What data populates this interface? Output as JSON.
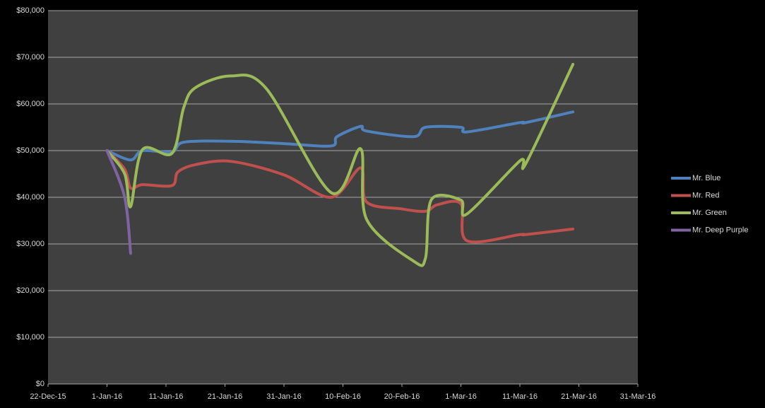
{
  "chart_data": {
    "type": "line",
    "xlim": [
      "2015-12-22",
      "2016-03-31"
    ],
    "xticks": [
      {
        "value": "2015-12-22",
        "label": "22-Dec-15"
      },
      {
        "value": "2016-01-01",
        "label": "1-Jan-16"
      },
      {
        "value": "2016-01-11",
        "label": "11-Jan-16"
      },
      {
        "value": "2016-01-21",
        "label": "21-Jan-16"
      },
      {
        "value": "2016-01-31",
        "label": "31-Jan-16"
      },
      {
        "value": "2016-02-10",
        "label": "10-Feb-16"
      },
      {
        "value": "2016-02-20",
        "label": "20-Feb-16"
      },
      {
        "value": "2016-03-01",
        "label": "1-Mar-16"
      },
      {
        "value": "2016-03-11",
        "label": "11-Mar-16"
      },
      {
        "value": "2016-03-21",
        "label": "21-Mar-16"
      },
      {
        "value": "2016-03-31",
        "label": "31-Mar-16"
      }
    ],
    "ylim": [
      0,
      80000
    ],
    "yticks": [
      {
        "value": 0,
        "label": "$0"
      },
      {
        "value": 10000,
        "label": "$10,000"
      },
      {
        "value": 20000,
        "label": "$20,000"
      },
      {
        "value": 30000,
        "label": "$30,000"
      },
      {
        "value": 40000,
        "label": "$40,000"
      },
      {
        "value": 50000,
        "label": "$50,000"
      },
      {
        "value": 60000,
        "label": "$60,000"
      },
      {
        "value": 70000,
        "label": "$70,000"
      },
      {
        "value": 80000,
        "label": "$80,000"
      }
    ],
    "grid": true,
    "legend": "right",
    "series": [
      {
        "name": "Mr. Blue",
        "color": "#4f81bd",
        "x": [
          "2016-01-01",
          "2016-01-05",
          "2016-01-07",
          "2016-01-12",
          "2016-01-14",
          "2016-01-22",
          "2016-01-31",
          "2016-02-08",
          "2016-02-09",
          "2016-02-13",
          "2016-02-14",
          "2016-02-22",
          "2016-02-24",
          "2016-03-01",
          "2016-03-02",
          "2016-03-11",
          "2016-03-12",
          "2016-03-20"
        ],
        "values": [
          50000,
          48000,
          50000,
          49700,
          51800,
          52000,
          51500,
          51000,
          53000,
          55200,
          54200,
          53000,
          55000,
          55000,
          54000,
          56000,
          56000,
          58300
        ]
      },
      {
        "name": "Mr. Red",
        "color": "#c0504d",
        "x": [
          "2016-01-01",
          "2016-01-04",
          "2016-01-05",
          "2016-01-07",
          "2016-01-12",
          "2016-01-13",
          "2016-01-16",
          "2016-01-22",
          "2016-01-31",
          "2016-02-08",
          "2016-02-13",
          "2016-02-14",
          "2016-02-20",
          "2016-02-24",
          "2016-02-26",
          "2016-03-01",
          "2016-03-02",
          "2016-03-11",
          "2016-03-12",
          "2016-03-20"
        ],
        "values": [
          50000,
          46000,
          42000,
          42700,
          42500,
          45400,
          47000,
          47700,
          44800,
          40000,
          46300,
          39000,
          37500,
          37000,
          38400,
          38600,
          30700,
          32000,
          32000,
          33200
        ]
      },
      {
        "name": "Mr. Green",
        "color": "#9bbb59",
        "x": [
          "2016-01-01",
          "2016-01-04",
          "2016-01-05",
          "2016-01-07",
          "2016-01-12",
          "2016-01-14",
          "2016-01-16",
          "2016-01-22",
          "2016-01-28",
          "2016-02-08",
          "2016-02-13",
          "2016-02-14",
          "2016-02-22",
          "2016-02-24",
          "2016-02-25",
          "2016-03-01",
          "2016-03-02",
          "2016-03-11",
          "2016-03-12",
          "2016-03-20"
        ],
        "values": [
          50000,
          45000,
          38000,
          50200,
          49400,
          59200,
          63500,
          66000,
          63300,
          41000,
          50400,
          35300,
          26300,
          27000,
          39500,
          39400,
          36400,
          47800,
          47200,
          68500
        ]
      },
      {
        "name": "Mr. Deep Purple",
        "color": "#8064a2",
        "x": [
          "2016-01-01",
          "2016-01-04",
          "2016-01-05"
        ],
        "values": [
          50000,
          40000,
          28000
        ]
      }
    ]
  }
}
